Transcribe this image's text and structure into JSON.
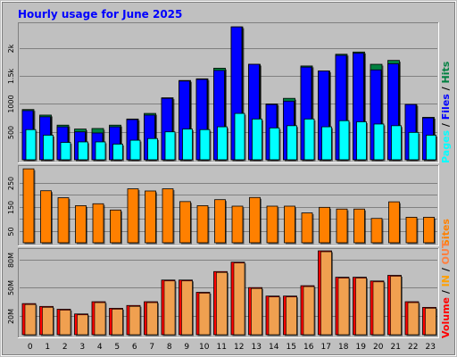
{
  "title": "Hourly usage for June 2025",
  "colors": {
    "background": "#c0c0c0",
    "title": "#0000ff",
    "hits": "#008040",
    "files": "#0000ff",
    "pages": "#00ffff",
    "sites": "#ff8000",
    "kbin": "#ffa000",
    "kbout": "#ff8040",
    "volume_text": "#ff0000",
    "volume_bar": "#ff0000"
  },
  "legend_top": {
    "pages": "Pages",
    "sep1": " / ",
    "files": "Files",
    "sep2": " / ",
    "hits": "Hits"
  },
  "legend_mid": {
    "sites": "Sites"
  },
  "legend_bot": {
    "volume": "Volume",
    "sep1": " / ",
    "in": "IN",
    "sep2": " / ",
    "out": "OUT"
  },
  "chart_data": [
    {
      "type": "bar",
      "panel": "top",
      "categories": [
        "0",
        "1",
        "2",
        "3",
        "4",
        "5",
        "6",
        "7",
        "8",
        "9",
        "10",
        "11",
        "12",
        "13",
        "14",
        "15",
        "16",
        "17",
        "18",
        "19",
        "20",
        "21",
        "22",
        "23"
      ],
      "series": [
        {
          "name": "Hits",
          "values": [
            900,
            800,
            620,
            550,
            560,
            620,
            730,
            830,
            1110,
            1420,
            1450,
            1640,
            2380,
            1710,
            1000,
            1100,
            1680,
            1590,
            1890,
            1930,
            1710,
            1780,
            990,
            760
          ]
        },
        {
          "name": "Files",
          "values": [
            880,
            770,
            590,
            500,
            480,
            590,
            720,
            800,
            1100,
            1410,
            1440,
            1600,
            2380,
            1710,
            990,
            1050,
            1660,
            1590,
            1870,
            1910,
            1610,
            1720,
            990,
            750
          ]
        },
        {
          "name": "Pages",
          "values": [
            540,
            440,
            310,
            320,
            320,
            280,
            350,
            380,
            500,
            550,
            540,
            590,
            830,
            730,
            570,
            610,
            730,
            590,
            700,
            680,
            640,
            610,
            490,
            440
          ]
        }
      ],
      "yticks": [
        500,
        1000,
        1500,
        2000
      ],
      "ytick_labels": [
        "500",
        "1000",
        "1.5k",
        "2k"
      ],
      "ylim": [
        0,
        2430
      ]
    },
    {
      "type": "bar",
      "panel": "middle",
      "categories": [
        "0",
        "1",
        "2",
        "3",
        "4",
        "5",
        "6",
        "7",
        "8",
        "9",
        "10",
        "11",
        "12",
        "13",
        "14",
        "15",
        "16",
        "17",
        "18",
        "19",
        "20",
        "21",
        "22",
        "23"
      ],
      "series": [
        {
          "name": "Sites",
          "values": [
            307,
            216,
            187,
            154,
            162,
            136,
            224,
            215,
            224,
            171,
            154,
            179,
            152,
            188,
            152,
            152,
            124,
            147,
            140,
            140,
            101,
            170,
            106,
            106
          ]
        }
      ],
      "yticks": [
        50,
        100,
        150,
        200,
        250
      ],
      "ytick_labels": [
        "50",
        "",
        "150",
        "",
        "250"
      ],
      "ylim": [
        0,
        315
      ]
    },
    {
      "type": "bar",
      "panel": "bottom",
      "categories": [
        "0",
        "1",
        "2",
        "3",
        "4",
        "5",
        "6",
        "7",
        "8",
        "9",
        "10",
        "11",
        "12",
        "13",
        "14",
        "15",
        "16",
        "17",
        "18",
        "19",
        "20",
        "21",
        "22",
        "23"
      ],
      "series": [
        {
          "name": "Volume",
          "values": [
            33,
            30,
            27,
            22,
            35,
            28,
            31,
            35,
            58,
            58,
            45,
            67,
            77,
            50,
            41,
            41,
            52,
            89,
            61,
            61,
            57,
            63,
            35,
            29
          ]
        }
      ],
      "yticks": [
        20,
        50,
        80
      ],
      "ytick_labels": [
        "20M",
        "50M",
        "80M"
      ],
      "ylim": [
        0,
        90
      ]
    }
  ]
}
